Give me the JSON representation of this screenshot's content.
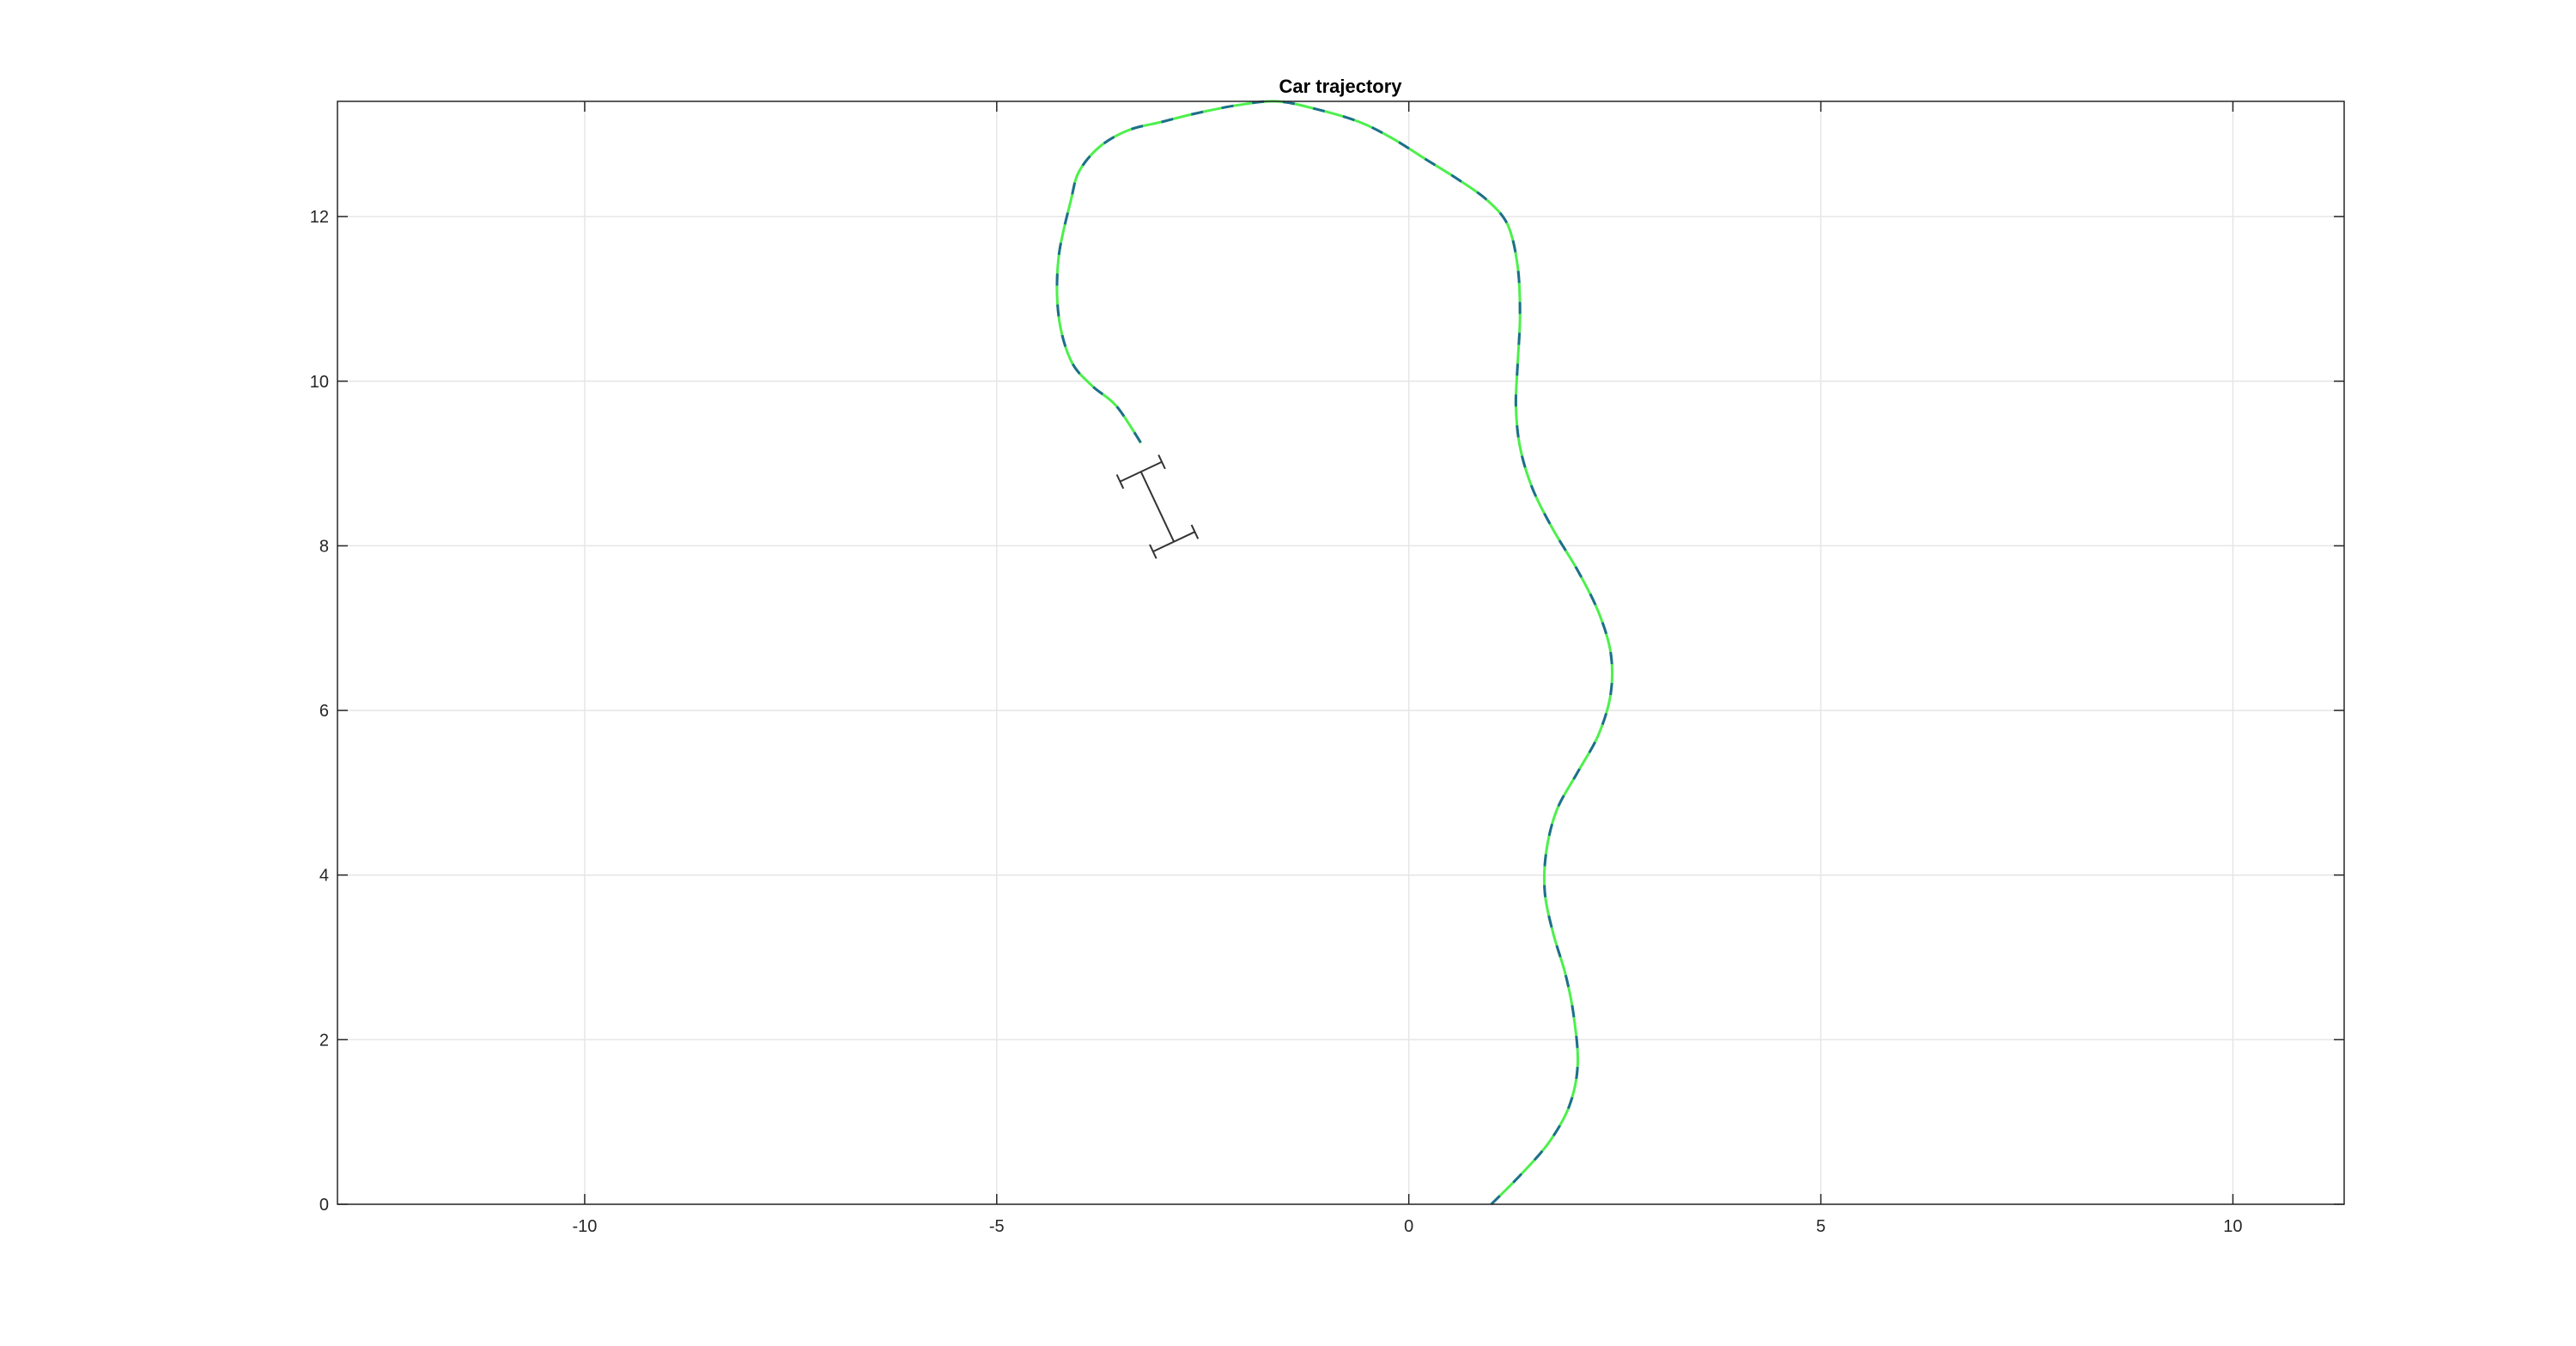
{
  "chart_data": {
    "type": "line",
    "title": "Car trajectory",
    "xlabel": "",
    "ylabel": "",
    "xlim": [
      -13,
      11.35
    ],
    "ylim": [
      0,
      13.4
    ],
    "xticks": [
      -10,
      -5,
      0,
      5,
      10
    ],
    "yticks": [
      0,
      2,
      4,
      6,
      8,
      10,
      12
    ],
    "grid": true,
    "colors": {
      "grid": "#e6e6e6",
      "axis": "#262626",
      "trajectory_light": "#4cf04c",
      "trajectory_dark": "#1f6e8c",
      "car": "#333333"
    },
    "series": [
      {
        "x": [
          1.0,
          1.35,
          1.7,
          1.95,
          2.05,
          2.0,
          1.9,
          1.75,
          1.65,
          1.67,
          1.8,
          2.05,
          2.3,
          2.45,
          2.45,
          2.3,
          2.05,
          1.75,
          1.5,
          1.35,
          1.3,
          1.32,
          1.35,
          1.32,
          1.2,
          0.95,
          0.6,
          0.2,
          -0.2,
          -0.6,
          -1.1,
          -1.6,
          -2.1,
          -2.6,
          -3.0,
          -3.4,
          -3.75,
          -4.0,
          -4.1,
          -4.25,
          -4.25,
          -4.1,
          -3.85,
          -3.55,
          -3.25
        ],
        "y": [
          0.0,
          0.35,
          0.75,
          1.2,
          1.7,
          2.3,
          2.8,
          3.3,
          3.8,
          4.3,
          4.8,
          5.25,
          5.7,
          6.2,
          6.7,
          7.2,
          7.7,
          8.2,
          8.7,
          9.2,
          9.7,
          10.2,
          10.8,
          11.4,
          11.9,
          12.2,
          12.45,
          12.7,
          12.95,
          13.15,
          13.3,
          13.4,
          13.35,
          13.25,
          13.15,
          13.05,
          12.85,
          12.55,
          12.2,
          11.5,
          10.8,
          10.25,
          9.95,
          9.7,
          9.25
        ]
      }
    ],
    "car": {
      "rear_axle": [
        -2.85,
        8.05
      ],
      "front_axle": [
        -3.25,
        8.9
      ],
      "half_track": 0.28
    }
  }
}
